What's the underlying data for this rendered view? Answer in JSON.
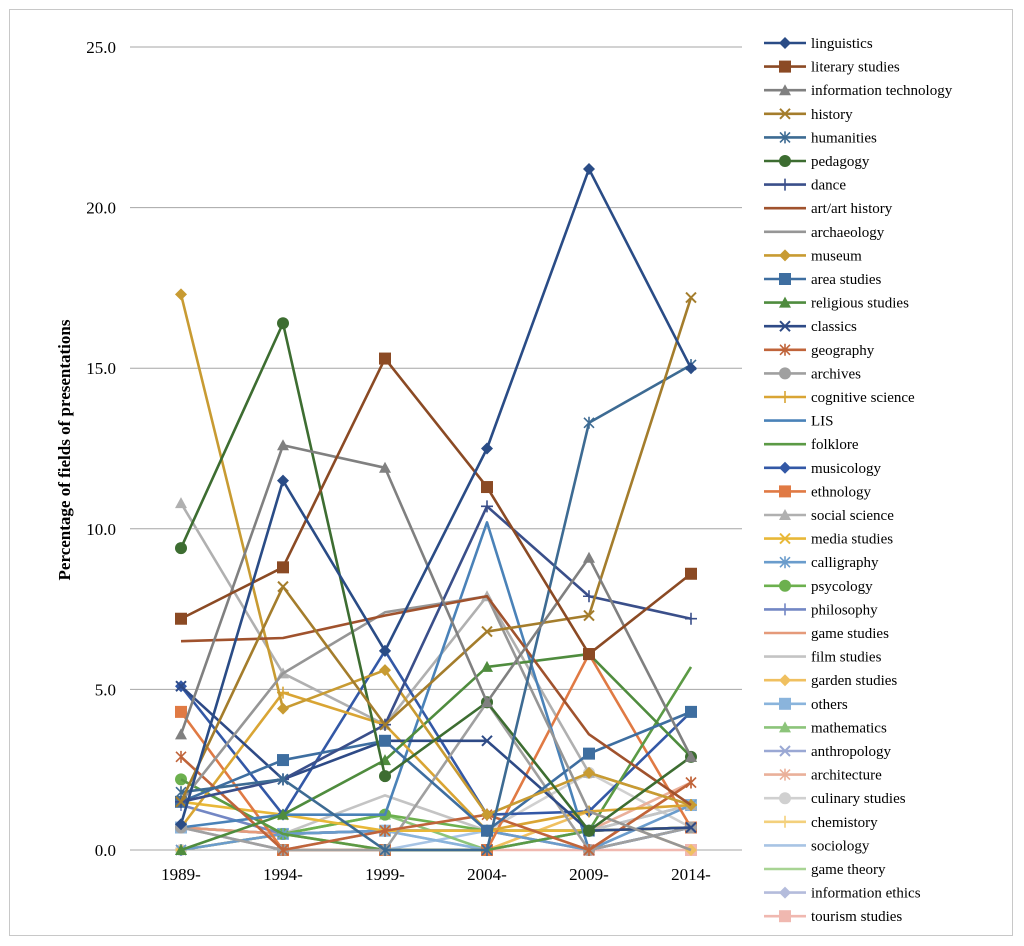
{
  "chart_data": {
    "type": "line",
    "title": "",
    "xlabel": "",
    "ylabel": "Percentage of fields of presentations",
    "categories": [
      "1989-",
      "1994-",
      "1999-",
      "2004-",
      "2009-",
      "2014-"
    ],
    "ylim": [
      0,
      25
    ],
    "yticks": [
      "0.0",
      "5.0",
      "10.0",
      "15.0",
      "20.0",
      "25.0"
    ],
    "grid": "horizontal",
    "legend_position": "right",
    "series": [
      {
        "name": "linguistics",
        "color": "#2a4c86",
        "marker": "diamond",
        "values": [
          0.8,
          11.5,
          6.2,
          12.5,
          21.2,
          15.0
        ]
      },
      {
        "name": "literary studies",
        "color": "#8b4a24",
        "marker": "square",
        "values": [
          7.2,
          8.8,
          15.3,
          11.3,
          6.1,
          8.6
        ]
      },
      {
        "name": "information technology",
        "color": "#808080",
        "marker": "triangle",
        "values": [
          3.6,
          12.6,
          11.9,
          4.6,
          9.1,
          2.9
        ]
      },
      {
        "name": "history",
        "color": "#a47d2c",
        "marker": "x",
        "values": [
          1.5,
          8.2,
          3.9,
          6.8,
          7.3,
          17.2
        ]
      },
      {
        "name": "humanities",
        "color": "#3d6b93",
        "marker": "star",
        "values": [
          1.8,
          2.2,
          0.0,
          0.0,
          13.3,
          15.1
        ]
      },
      {
        "name": "pedagogy",
        "color": "#3d6d31",
        "marker": "circle",
        "values": [
          9.4,
          16.4,
          2.3,
          4.6,
          0.6,
          2.9
        ]
      },
      {
        "name": "dance",
        "color": "#3a4f8a",
        "marker": "plus",
        "values": [
          1.5,
          2.2,
          3.9,
          10.7,
          7.9,
          7.2
        ]
      },
      {
        "name": "art/art history",
        "color": "#a0522d",
        "marker": "none",
        "values": [
          6.5,
          6.6,
          7.3,
          7.9,
          3.6,
          1.4
        ]
      },
      {
        "name": "archaeology",
        "color": "#969696",
        "marker": "none",
        "values": [
          1.5,
          5.5,
          7.4,
          7.9,
          1.2,
          0.0
        ]
      },
      {
        "name": "museum",
        "color": "#c89b32",
        "marker": "diamond",
        "values": [
          17.3,
          4.4,
          5.6,
          1.1,
          2.4,
          1.4
        ]
      },
      {
        "name": "area studies",
        "color": "#3e6ea0",
        "marker": "square",
        "values": [
          1.5,
          2.8,
          3.4,
          0.6,
          3.0,
          4.3
        ]
      },
      {
        "name": "religious studies",
        "color": "#4f8c3e",
        "marker": "triangle",
        "values": [
          0.0,
          1.1,
          2.8,
          5.7,
          6.1,
          2.9
        ]
      },
      {
        "name": "classics",
        "color": "#2e4a86",
        "marker": "x",
        "values": [
          5.1,
          2.2,
          3.4,
          3.4,
          0.6,
          0.7
        ]
      },
      {
        "name": "geography",
        "color": "#c0643a",
        "marker": "star",
        "values": [
          2.9,
          0.0,
          0.6,
          1.1,
          0.0,
          2.1
        ]
      },
      {
        "name": "archives",
        "color": "#a0a0a0",
        "marker": "circle",
        "values": [
          0.7,
          0.0,
          0.0,
          4.6,
          0.0,
          0.7
        ]
      },
      {
        "name": "cognitive science",
        "color": "#d9a534",
        "marker": "plus",
        "values": [
          0.7,
          4.9,
          3.9,
          0.6,
          1.2,
          1.4
        ]
      },
      {
        "name": "LIS",
        "color": "#4a82b8",
        "marker": "none",
        "values": [
          0.7,
          1.1,
          1.1,
          10.2,
          0.0,
          0.7
        ]
      },
      {
        "name": "folklore",
        "color": "#5b9a45",
        "marker": "none",
        "values": [
          2.2,
          0.5,
          0.0,
          0.0,
          0.6,
          5.7
        ]
      },
      {
        "name": "musicology",
        "color": "#3358a6",
        "marker": "diamond",
        "values": [
          5.1,
          1.1,
          6.2,
          1.1,
          1.2,
          4.3
        ]
      },
      {
        "name": "ethnology",
        "color": "#e07a44",
        "marker": "square",
        "values": [
          4.3,
          0.0,
          0.0,
          0.0,
          6.1,
          0.7
        ]
      },
      {
        "name": "social science",
        "color": "#b0b0b0",
        "marker": "triangle",
        "values": [
          10.8,
          5.5,
          3.9,
          7.9,
          2.4,
          1.4
        ]
      },
      {
        "name": "media studies",
        "color": "#e8b838",
        "marker": "x",
        "values": [
          1.5,
          1.1,
          0.6,
          0.6,
          0.6,
          0.7
        ]
      },
      {
        "name": "calligraphy",
        "color": "#6a9ccc",
        "marker": "star",
        "values": [
          0.0,
          0.5,
          0.6,
          0.6,
          0.0,
          1.4
        ]
      },
      {
        "name": "psycology",
        "color": "#6cb04e",
        "marker": "circle",
        "values": [
          2.2,
          0.5,
          1.1,
          0.6,
          0.6,
          0.7
        ]
      },
      {
        "name": "philosophy",
        "color": "#7387c4",
        "marker": "plus",
        "values": [
          1.4,
          0.5,
          0.6,
          0.6,
          0.6,
          0.7
        ]
      },
      {
        "name": "game studies",
        "color": "#e59a7a",
        "marker": "none",
        "values": [
          0.7,
          0.5,
          0.6,
          0.6,
          0.0,
          2.1
        ]
      },
      {
        "name": "film studies",
        "color": "#c4c4c4",
        "marker": "none",
        "values": [
          0.7,
          0.5,
          1.7,
          0.6,
          0.6,
          1.4
        ]
      },
      {
        "name": "garden studies",
        "color": "#f0c060",
        "marker": "diamond",
        "values": [
          0.0,
          0.5,
          0.0,
          0.0,
          1.2,
          0.0
        ]
      },
      {
        "name": "others",
        "color": "#8ab4dc",
        "marker": "square",
        "values": [
          0.7,
          0.5,
          0.6,
          0.0,
          0.6,
          1.4
        ]
      },
      {
        "name": "mathematics",
        "color": "#8cc47a",
        "marker": "triangle",
        "values": [
          0.0,
          0.5,
          1.1,
          0.0,
          0.6,
          0.7
        ]
      },
      {
        "name": "anthropology",
        "color": "#9aa8d4",
        "marker": "x",
        "values": [
          0.7,
          0.5,
          0.6,
          0.6,
          0.0,
          0.7
        ]
      },
      {
        "name": "architecture",
        "color": "#eab09a",
        "marker": "star",
        "values": [
          0.0,
          0.5,
          0.6,
          0.6,
          0.6,
          2.1
        ]
      },
      {
        "name": "culinary studies",
        "color": "#d0d0d0",
        "marker": "circle",
        "values": [
          0.0,
          0.5,
          0.6,
          0.6,
          2.4,
          0.7
        ]
      },
      {
        "name": "chemistory",
        "color": "#f3d07c",
        "marker": "plus",
        "values": [
          0.7,
          0.5,
          0.6,
          0.6,
          0.6,
          0.7
        ]
      },
      {
        "name": "sociology",
        "color": "#a8c4e4",
        "marker": "none",
        "values": [
          0.0,
          0.5,
          0.0,
          0.6,
          0.6,
          0.7
        ]
      },
      {
        "name": "game theory",
        "color": "#a8d494",
        "marker": "none",
        "values": [
          0.7,
          0.5,
          0.6,
          0.6,
          0.6,
          0.7
        ]
      },
      {
        "name": "information ethics",
        "color": "#b4bcdc",
        "marker": "diamond",
        "values": [
          0.7,
          0.0,
          0.6,
          0.0,
          0.6,
          0.7
        ]
      },
      {
        "name": "tourism studies",
        "color": "#f0b8b0",
        "marker": "square",
        "values": [
          0.7,
          0.0,
          0.0,
          0.0,
          0.0,
          0.0
        ]
      }
    ]
  }
}
